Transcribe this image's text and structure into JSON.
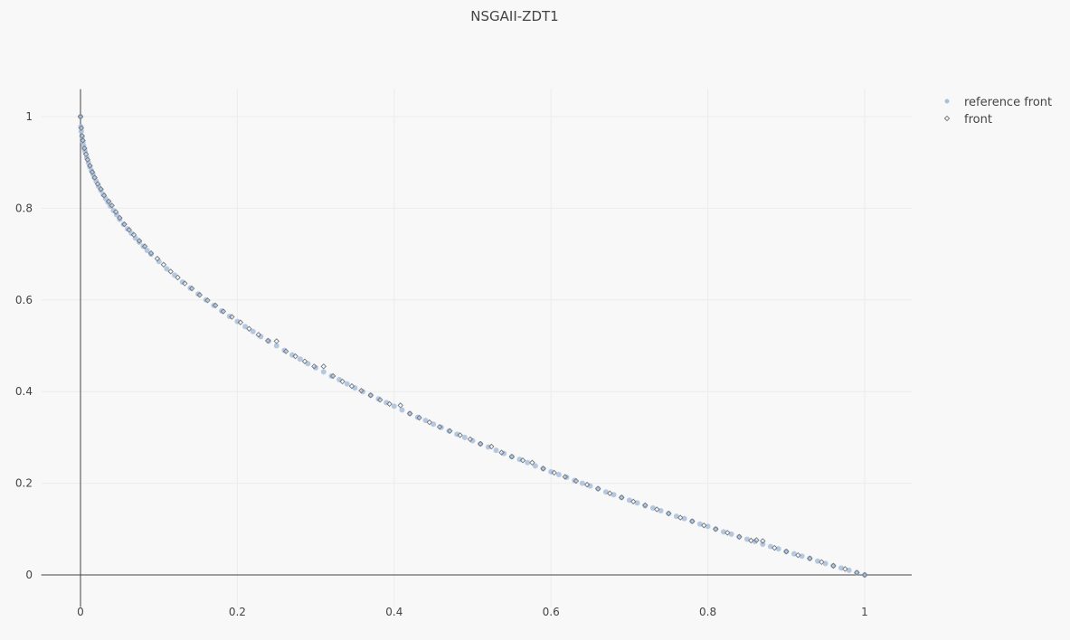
{
  "chart_data": {
    "type": "scatter",
    "title": "NSGAII-ZDT1",
    "xlabel": "",
    "ylabel": "",
    "xlim": [
      -0.05,
      1.06
    ],
    "ylim": [
      -0.07,
      1.06
    ],
    "x_ticks": [
      0,
      0.2,
      0.4,
      0.6,
      0.8,
      1
    ],
    "y_ticks": [
      0,
      0.2,
      0.4,
      0.6,
      0.8,
      1
    ],
    "x_tick_labels": [
      "0",
      "0.2",
      "0.4",
      "0.6",
      "0.8",
      "1"
    ],
    "y_tick_labels": [
      "0",
      "0.2",
      "0.4",
      "0.6",
      "0.8",
      "1"
    ],
    "grid": true,
    "legend_position": "top-right",
    "series": [
      {
        "name": "reference front",
        "marker": "circle",
        "color": "#a9c0dc",
        "x": [
          0,
          0.0005,
          0.001,
          0.002,
          0.003,
          0.004,
          0.005,
          0.006,
          0.008,
          0.01,
          0.012,
          0.014,
          0.016,
          0.018,
          0.02,
          0.023,
          0.026,
          0.029,
          0.032,
          0.035,
          0.038,
          0.042,
          0.046,
          0.05,
          0.055,
          0.06,
          0.065,
          0.07,
          0.075,
          0.08,
          0.085,
          0.09,
          0.1,
          0.11,
          0.12,
          0.13,
          0.14,
          0.15,
          0.16,
          0.17,
          0.18,
          0.19,
          0.2,
          0.21,
          0.22,
          0.23,
          0.24,
          0.25,
          0.26,
          0.27,
          0.28,
          0.29,
          0.3,
          0.31,
          0.32,
          0.33,
          0.34,
          0.35,
          0.36,
          0.37,
          0.38,
          0.39,
          0.4,
          0.41,
          0.42,
          0.43,
          0.44,
          0.45,
          0.46,
          0.47,
          0.48,
          0.49,
          0.5,
          0.51,
          0.52,
          0.53,
          0.54,
          0.55,
          0.56,
          0.57,
          0.58,
          0.59,
          0.6,
          0.61,
          0.62,
          0.63,
          0.64,
          0.65,
          0.66,
          0.67,
          0.68,
          0.69,
          0.7,
          0.71,
          0.72,
          0.73,
          0.74,
          0.75,
          0.76,
          0.77,
          0.78,
          0.79,
          0.8,
          0.81,
          0.82,
          0.83,
          0.84,
          0.85,
          0.86,
          0.87,
          0.88,
          0.89,
          0.9,
          0.91,
          0.92,
          0.93,
          0.94,
          0.95,
          0.96,
          0.97,
          0.98,
          0.99,
          1
        ],
        "y": [
          1,
          0.978,
          0.968,
          0.955,
          0.945,
          0.937,
          0.929,
          0.923,
          0.911,
          0.9,
          0.89,
          0.882,
          0.874,
          0.866,
          0.859,
          0.848,
          0.839,
          0.83,
          0.821,
          0.813,
          0.805,
          0.795,
          0.786,
          0.776,
          0.765,
          0.755,
          0.745,
          0.735,
          0.726,
          0.717,
          0.708,
          0.7,
          0.684,
          0.668,
          0.654,
          0.639,
          0.626,
          0.613,
          0.6,
          0.588,
          0.576,
          0.564,
          0.553,
          0.542,
          0.531,
          0.52,
          0.51,
          0.5,
          0.49,
          0.48,
          0.471,
          0.461,
          0.452,
          0.443,
          0.434,
          0.426,
          0.417,
          0.408,
          0.4,
          0.392,
          0.384,
          0.376,
          0.368,
          0.36,
          0.352,
          0.344,
          0.337,
          0.329,
          0.322,
          0.314,
          0.307,
          0.3,
          0.293,
          0.286,
          0.279,
          0.272,
          0.265,
          0.258,
          0.252,
          0.245,
          0.238,
          0.232,
          0.225,
          0.219,
          0.213,
          0.206,
          0.2,
          0.194,
          0.188,
          0.181,
          0.175,
          0.169,
          0.163,
          0.157,
          0.151,
          0.146,
          0.14,
          0.134,
          0.128,
          0.123,
          0.117,
          0.111,
          0.106,
          0.1,
          0.094,
          0.089,
          0.083,
          0.078,
          0.073,
          0.067,
          0.062,
          0.057,
          0.051,
          0.046,
          0.041,
          0.036,
          0.03,
          0.025,
          0.02,
          0.015,
          0.01,
          0.005,
          0
        ]
      },
      {
        "name": "front",
        "marker": "diamond-open",
        "color": "#6f7780",
        "x": [
          0,
          0.001,
          0.002,
          0.003,
          0.005,
          0.007,
          0.009,
          0.012,
          0.015,
          0.018,
          0.022,
          0.026,
          0.03,
          0.036,
          0.04,
          0.045,
          0.05,
          0.056,
          0.062,
          0.068,
          0.075,
          0.082,
          0.09,
          0.098,
          0.106,
          0.115,
          0.124,
          0.133,
          0.142,
          0.152,
          0.162,
          0.172,
          0.182,
          0.193,
          0.204,
          0.215,
          0.227,
          0.239,
          0.25,
          0.262,
          0.274,
          0.286,
          0.298,
          0.31,
          0.322,
          0.334,
          0.346,
          0.358,
          0.37,
          0.382,
          0.394,
          0.408,
          0.42,
          0.432,
          0.445,
          0.458,
          0.471,
          0.484,
          0.497,
          0.51,
          0.524,
          0.537,
          0.55,
          0.564,
          0.576,
          0.59,
          0.604,
          0.618,
          0.632,
          0.646,
          0.66,
          0.675,
          0.69,
          0.705,
          0.72,
          0.735,
          0.75,
          0.765,
          0.78,
          0.795,
          0.81,
          0.825,
          0.84,
          0.855,
          0.862,
          0.87,
          0.885,
          0.9,
          0.915,
          0.93,
          0.945,
          0.96,
          0.975,
          0.99,
          1
        ],
        "y": [
          1,
          0.975,
          0.958,
          0.948,
          0.931,
          0.918,
          0.906,
          0.893,
          0.879,
          0.867,
          0.853,
          0.842,
          0.828,
          0.815,
          0.806,
          0.792,
          0.779,
          0.765,
          0.753,
          0.742,
          0.729,
          0.717,
          0.702,
          0.69,
          0.677,
          0.662,
          0.649,
          0.636,
          0.625,
          0.611,
          0.599,
          0.588,
          0.575,
          0.563,
          0.551,
          0.537,
          0.524,
          0.511,
          0.51,
          0.488,
          0.477,
          0.466,
          0.455,
          0.455,
          0.434,
          0.422,
          0.412,
          0.402,
          0.392,
          0.382,
          0.373,
          0.37,
          0.352,
          0.343,
          0.333,
          0.323,
          0.314,
          0.305,
          0.296,
          0.286,
          0.28,
          0.267,
          0.258,
          0.25,
          0.245,
          0.232,
          0.223,
          0.214,
          0.205,
          0.197,
          0.188,
          0.178,
          0.169,
          0.16,
          0.152,
          0.143,
          0.134,
          0.125,
          0.117,
          0.108,
          0.1,
          0.092,
          0.083,
          0.075,
          0.076,
          0.074,
          0.059,
          0.051,
          0.043,
          0.036,
          0.028,
          0.02,
          0.013,
          0.005,
          0
        ]
      }
    ]
  }
}
